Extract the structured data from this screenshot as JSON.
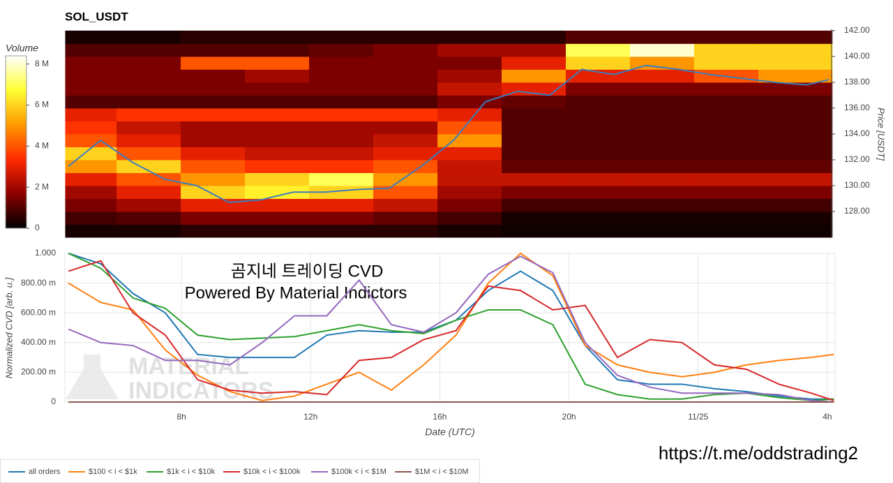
{
  "chart_data": [
    {
      "type": "heatmap",
      "title": "SOL_USDT",
      "colorbar_title": "Volume",
      "ylabel": "Price [USDT]",
      "time_bins": [
        4.4,
        6,
        8,
        10,
        12,
        14,
        16,
        18,
        20,
        22,
        24,
        26,
        28.3
      ],
      "price_bins": [
        126,
        127,
        128,
        129,
        130,
        131,
        132,
        133,
        134,
        135,
        136,
        137,
        138,
        139,
        140,
        141,
        142
      ],
      "z": [
        [
          300000.0,
          300000.0,
          500000.0,
          500000.0,
          500000.0,
          500000.0,
          300000.0,
          200000.0,
          200000.0,
          200000.0,
          200000.0,
          200000.0
        ],
        [
          800000.0,
          1000000.0,
          1500000.0,
          1500000.0,
          1500000.0,
          1200000.0,
          800000.0,
          300000.0,
          300000.0,
          300000.0,
          300000.0,
          300000.0
        ],
        [
          1500000.0,
          2000000.0,
          3000000.0,
          3000000.0,
          3000000.0,
          2500000.0,
          1500000.0,
          800000.0,
          800000.0,
          800000.0,
          800000.0,
          800000.0
        ],
        [
          2000000.0,
          3000000.0,
          6000000.0,
          6500000.0,
          6000000.0,
          4000000.0,
          2000000.0,
          1500000.0,
          1500000.0,
          1500000.0,
          1500000.0,
          1500000.0
        ],
        [
          3000000.0,
          4000000.0,
          5000000.0,
          6000000.0,
          7000000.0,
          5000000.0,
          2500000.0,
          2500000.0,
          2500000.0,
          2500000.0,
          2500000.0,
          2500000.0
        ],
        [
          5000000.0,
          6000000.0,
          4000000.0,
          3500000.0,
          3500000.0,
          4000000.0,
          2500000.0,
          1200000.0,
          1200000.0,
          1200000.0,
          1200000.0,
          1200000.0
        ],
        [
          6000000.0,
          4000000.0,
          3000000.0,
          2500000.0,
          2500000.0,
          3000000.0,
          3000000.0,
          1000000.0,
          1000000.0,
          1000000.0,
          1000000.0,
          1000000.0
        ],
        [
          4000000.0,
          3000000.0,
          2000000.0,
          2000000.0,
          2000000.0,
          2500000.0,
          5000000.0,
          1000000.0,
          1000000.0,
          1000000.0,
          1000000.0,
          1000000.0
        ],
        [
          3500000.0,
          2500000.0,
          2000000.0,
          2000000.0,
          2000000.0,
          2000000.0,
          4000000.0,
          1000000.0,
          1000000.0,
          1000000.0,
          1000000.0,
          1000000.0
        ],
        [
          3000000.0,
          3500000.0,
          3500000.0,
          3500000.0,
          3500000.0,
          3500000.0,
          3000000.0,
          1000000.0,
          1000000.0,
          1000000.0,
          1000000.0,
          1000000.0
        ],
        [
          1000000.0,
          1000000.0,
          1000000.0,
          1000000.0,
          1000000.0,
          1000000.0,
          1500000.0,
          1200000.0,
          1000000.0,
          1000000.0,
          1000000.0,
          1000000.0
        ],
        [
          1500000.0,
          1500000.0,
          1500000.0,
          1500000.0,
          1500000.0,
          1500000.0,
          2500000.0,
          3000000.0,
          1500000.0,
          1500000.0,
          1500000.0,
          1500000.0
        ],
        [
          1500000.0,
          1500000.0,
          1500000.0,
          2000000.0,
          1500000.0,
          1500000.0,
          2000000.0,
          5000000.0,
          3000000.0,
          3000000.0,
          4000000.0,
          5000000.0
        ],
        [
          1500000.0,
          1500000.0,
          4000000.0,
          4000000.0,
          1500000.0,
          1500000.0,
          1500000.0,
          3000000.0,
          6000000.0,
          5000000.0,
          6000000.0,
          6000000.0
        ],
        [
          1000000.0,
          1000000.0,
          1000000.0,
          1000000.0,
          1200000.0,
          1500000.0,
          2000000.0,
          2000000.0,
          7000000.0,
          8000000.0,
          6000000.0,
          6000000.0
        ],
        [
          300000.0,
          300000.0,
          500000.0,
          500000.0,
          500000.0,
          500000.0,
          500000.0,
          500000.0,
          1000000.0,
          1000000.0,
          1000000.0,
          1000000.0
        ]
      ],
      "colorscale": [
        "#000000",
        "#8b0000",
        "#ff2a00",
        "#ff9900",
        "#ffff33",
        "#ffffff"
      ],
      "clim": [
        0,
        8400000.0
      ],
      "cticks": [
        0,
        {
          "value": 2000000.0,
          "label": "2 M"
        },
        {
          "value": 4000000.0,
          "label": "4 M"
        },
        {
          "value": 6000000.0,
          "label": "6 M"
        },
        {
          "value": 8000000.0,
          "label": "8 M"
        }
      ],
      "x": [
        4.5,
        5.5,
        6.5,
        7.5,
        8.5,
        9.5,
        10.5,
        11.5,
        12.5,
        13.5,
        14.5,
        15.5,
        16.5,
        17.5,
        18.5,
        19.5,
        20.5,
        21.5,
        22.5,
        23.5,
        24.5,
        25.5,
        26.5,
        27.5,
        28.2
      ],
      "price": [
        131.5,
        133.5,
        131.8,
        130.5,
        130,
        128.7,
        128.9,
        129.5,
        129.5,
        129.7,
        129.8,
        131.5,
        133.5,
        136.5,
        137.3,
        137,
        139,
        138.6,
        139.3,
        139,
        138.6,
        138.3,
        138,
        137.8,
        138.2
      ],
      "price_color": "#3a7dbf",
      "xlim": [
        4.39,
        28.24
      ],
      "ylim": [
        126,
        142.1
      ],
      "yticks": [
        {
          "value": 128,
          "label": "128.00"
        },
        {
          "value": 130,
          "label": "130.00"
        },
        {
          "value": 132,
          "label": "132.00"
        },
        {
          "value": 134,
          "label": "134.00"
        },
        {
          "value": 136,
          "label": "136.00"
        },
        {
          "value": 138,
          "label": "138.00"
        },
        {
          "value": 140,
          "label": "140.00"
        },
        {
          "value": 142,
          "label": "142.00"
        }
      ]
    },
    {
      "type": "line",
      "xlabel": "Date (UTC)",
      "ylabel": "Normalized CVD [arb. u.]",
      "annotations": [
        "곰지네 트레이딩 CVD",
        "Powered By Material Indictors"
      ],
      "watermark": [
        "MATERIAL",
        "INDICATORS"
      ],
      "x": [
        4.5,
        5.5,
        6.5,
        7.5,
        8.5,
        9.5,
        10.5,
        11.5,
        12.5,
        13.5,
        14.5,
        15.5,
        16.5,
        17.5,
        18.5,
        19.5,
        20.5,
        21.5,
        22.5,
        23.5,
        24.5,
        25.5,
        26.5,
        27.5,
        28.2
      ],
      "xlim": [
        4.39,
        28.24
      ],
      "ylim": [
        0,
        1
      ],
      "xticks": [
        {
          "value": 8,
          "label": "8h"
        },
        {
          "value": 12,
          "label": "12h"
        },
        {
          "value": 16,
          "label": "16h"
        },
        {
          "value": 20,
          "label": "20h"
        },
        {
          "value": 24,
          "label": "11/25"
        },
        {
          "value": 28,
          "label": "4h"
        }
      ],
      "yticks": [
        0,
        {
          "value": 0.2,
          "label": "200.00 m"
        },
        {
          "value": 0.4,
          "label": "400.00 m"
        },
        {
          "value": 0.6,
          "label": "600.00 m"
        },
        {
          "value": 0.8,
          "label": "800.00 m"
        },
        {
          "value": 1,
          "label": "1.000"
        }
      ],
      "grid": true,
      "series": [
        {
          "name": "all orders",
          "color": "#1f77b4",
          "values": [
            1,
            0.93,
            0.73,
            0.6,
            0.32,
            0.3,
            0.3,
            0.3,
            0.45,
            0.48,
            0.47,
            0.47,
            0.55,
            0.75,
            0.88,
            0.75,
            0.38,
            0.15,
            0.12,
            0.12,
            0.09,
            0.07,
            0.04,
            0.02,
            0.02
          ]
        },
        {
          "name": "$100 < i < $1k",
          "color": "#ff7f0e",
          "values": [
            0.8,
            0.67,
            0.62,
            0.35,
            0.18,
            0.07,
            0.01,
            0.04,
            0.12,
            0.2,
            0.08,
            0.25,
            0.45,
            0.8,
            1,
            0.85,
            0.38,
            0.25,
            0.2,
            0.17,
            0.2,
            0.25,
            0.28,
            0.3,
            0.32
          ]
        },
        {
          "name": "$1k < i < $10k",
          "color": "#2ca02c",
          "values": [
            1,
            0.9,
            0.7,
            0.63,
            0.45,
            0.42,
            0.43,
            0.44,
            0.48,
            0.52,
            0.48,
            0.46,
            0.55,
            0.62,
            0.62,
            0.52,
            0.12,
            0.05,
            0.02,
            0.02,
            0.05,
            0.06,
            0.03,
            0.01,
            0.02
          ]
        },
        {
          "name": "$10k < i < $100k",
          "color": "#d62728",
          "values": [
            0.88,
            0.95,
            0.6,
            0.45,
            0.15,
            0.08,
            0.06,
            0.07,
            0.05,
            0.28,
            0.3,
            0.42,
            0.48,
            0.78,
            0.75,
            0.62,
            0.65,
            0.3,
            0.42,
            0.4,
            0.25,
            0.22,
            0.12,
            0.06,
            0.01
          ]
        },
        {
          "name": "$100k < i < $1M",
          "color": "#9467bd",
          "values": [
            0.49,
            0.4,
            0.38,
            0.28,
            0.28,
            0.25,
            0.4,
            0.58,
            0.58,
            0.82,
            0.52,
            0.47,
            0.6,
            0.86,
            0.98,
            0.87,
            0.4,
            0.18,
            0.1,
            0.06,
            0.06,
            0.06,
            0.05,
            0.01,
            0
          ]
        },
        {
          "name": "$1M < i < $10M",
          "color": "#8c564b",
          "values": [
            0,
            0,
            0,
            0,
            0,
            0,
            0,
            0,
            0,
            0,
            0,
            0,
            0,
            0,
            0,
            0,
            0,
            0,
            0,
            0,
            0,
            0,
            0,
            0,
            0
          ]
        }
      ]
    }
  ],
  "footer_link": "https://t.me/oddstrading2"
}
